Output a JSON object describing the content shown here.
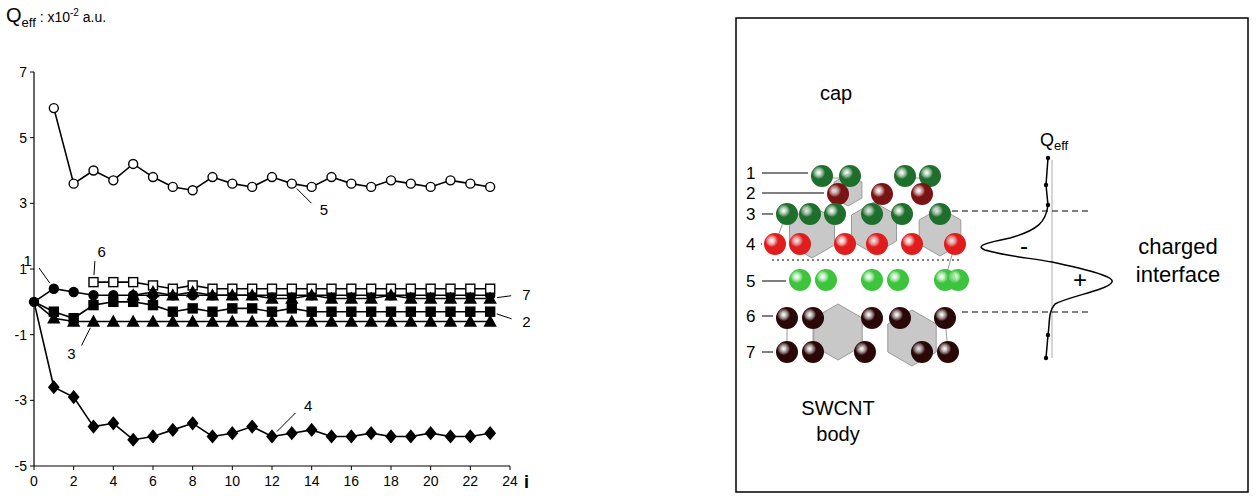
{
  "chart_data": {
    "type": "line",
    "y_label": {
      "main": "Q",
      "sub": "eff",
      "rest": " : x10",
      "sup": "-2",
      "unit": " a.u."
    },
    "x_label": "i",
    "xlim": [
      0,
      24
    ],
    "ylim": [
      -5,
      7
    ],
    "xticks": [
      0,
      2,
      4,
      6,
      8,
      10,
      12,
      14,
      16,
      18,
      20,
      22,
      24
    ],
    "yticks": [
      -5,
      -3,
      -1,
      1,
      3,
      5,
      7
    ],
    "series": [
      {
        "name": "1",
        "marker": "circle",
        "color": "#000000",
        "x": [
          0,
          1,
          2,
          3,
          4,
          5,
          6,
          7,
          8,
          9,
          10,
          11,
          12,
          13,
          14,
          15,
          16,
          17,
          18,
          19,
          20,
          21,
          22,
          23
        ],
        "values": [
          0,
          0.4,
          0.3,
          0.2,
          0.2,
          0.2,
          0.2,
          0.2,
          0.2,
          0.2,
          0.2,
          0.2,
          0.2,
          0.2,
          0.2,
          0.2,
          0.2,
          0.2,
          0.2,
          0.2,
          0.2,
          0.2,
          0.2,
          0.2
        ]
      },
      {
        "name": "2",
        "marker": "square",
        "color": "#000000",
        "x": [
          0,
          1,
          2,
          3,
          4,
          5,
          6,
          7,
          8,
          9,
          10,
          11,
          12,
          13,
          14,
          15,
          16,
          17,
          18,
          19,
          20,
          21,
          22,
          23
        ],
        "values": [
          0,
          -0.3,
          -0.5,
          -0.1,
          0,
          0,
          -0.1,
          -0.3,
          -0.2,
          -0.3,
          -0.2,
          -0.2,
          -0.3,
          -0.2,
          -0.3,
          -0.3,
          -0.3,
          -0.3,
          -0.3,
          -0.3,
          -0.3,
          -0.3,
          -0.3,
          -0.3
        ]
      },
      {
        "name": "3",
        "marker": "triangle",
        "color": "#000000",
        "x": [
          0,
          1,
          2,
          3,
          4,
          5,
          6,
          7,
          8,
          9,
          10,
          11,
          12,
          13,
          14,
          15,
          16,
          17,
          18,
          19,
          20,
          21,
          22,
          23
        ],
        "values": [
          0,
          -0.5,
          -0.6,
          -0.6,
          -0.6,
          -0.6,
          -0.6,
          -0.6,
          -0.6,
          -0.6,
          -0.6,
          -0.6,
          -0.6,
          -0.6,
          -0.6,
          -0.6,
          -0.6,
          -0.6,
          -0.6,
          -0.6,
          -0.6,
          -0.6,
          -0.6,
          -0.6
        ]
      },
      {
        "name": "4",
        "marker": "diamond",
        "color": "#000000",
        "x": [
          0,
          1,
          2,
          3,
          4,
          5,
          6,
          7,
          8,
          9,
          10,
          11,
          12,
          13,
          14,
          15,
          16,
          17,
          18,
          19,
          20,
          21,
          22,
          23
        ],
        "values": [
          0,
          -2.6,
          -2.9,
          -3.8,
          -3.7,
          -4.2,
          -4.1,
          -3.9,
          -3.7,
          -4.1,
          -4.0,
          -3.8,
          -4.1,
          -4.0,
          -3.9,
          -4.1,
          -4.1,
          -4.0,
          -4.1,
          -4.1,
          -4.0,
          -4.1,
          -4.1,
          -4.0
        ]
      },
      {
        "name": "5",
        "marker": "open-circle",
        "color": "#000000",
        "x": [
          1,
          2,
          3,
          4,
          5,
          6,
          7,
          8,
          9,
          10,
          11,
          12,
          13,
          14,
          15,
          16,
          17,
          18,
          19,
          20,
          21,
          22,
          23
        ],
        "values": [
          5.9,
          3.6,
          4.0,
          3.7,
          4.2,
          3.8,
          3.5,
          3.4,
          3.8,
          3.6,
          3.5,
          3.8,
          3.6,
          3.5,
          3.8,
          3.6,
          3.5,
          3.7,
          3.6,
          3.5,
          3.7,
          3.6,
          3.5
        ]
      },
      {
        "name": "6",
        "marker": "open-square",
        "color": "#000000",
        "x": [
          3,
          4,
          5,
          6,
          7,
          8,
          9,
          10,
          11,
          12,
          13,
          14,
          15,
          16,
          17,
          18,
          19,
          20,
          21,
          22,
          23
        ],
        "values": [
          0.6,
          0.6,
          0.6,
          0.5,
          0.4,
          0.5,
          0.4,
          0.4,
          0.4,
          0.4,
          0.4,
          0.4,
          0.4,
          0.4,
          0.4,
          0.4,
          0.4,
          0.4,
          0.4,
          0.4,
          0.4
        ]
      },
      {
        "name": "7",
        "marker": "triangle",
        "color": "#000000",
        "x": [
          5,
          6,
          7,
          8,
          9,
          10,
          11,
          12,
          13,
          14,
          15,
          16,
          17,
          18,
          19,
          20,
          21,
          22,
          23
        ],
        "values": [
          0.2,
          0.3,
          0.2,
          0.3,
          0.2,
          0.2,
          0.2,
          0.1,
          0.1,
          0.2,
          0.1,
          0.1,
          0.1,
          0.2,
          0.1,
          0.1,
          0.1,
          0.1,
          0.1
        ]
      }
    ]
  },
  "diagram": {
    "cap_label": "cap",
    "body_label": "SWCNT body",
    "layers": [
      {
        "label": "1",
        "color": "#1e6e2c"
      },
      {
        "label": "2",
        "color": "#7a1414"
      },
      {
        "label": "3",
        "color": "#1e6e2c"
      },
      {
        "label": "4",
        "color": "#e01c1c"
      },
      {
        "label": "5",
        "color": "#3cc43c"
      },
      {
        "label": "6",
        "color": "#2a0808"
      },
      {
        "label": "7",
        "color": "#2a0808"
      }
    ],
    "curve_label": {
      "main": "Q",
      "sub": "eff"
    },
    "minus": "-",
    "plus": "+",
    "interface_label": "charged interface"
  }
}
